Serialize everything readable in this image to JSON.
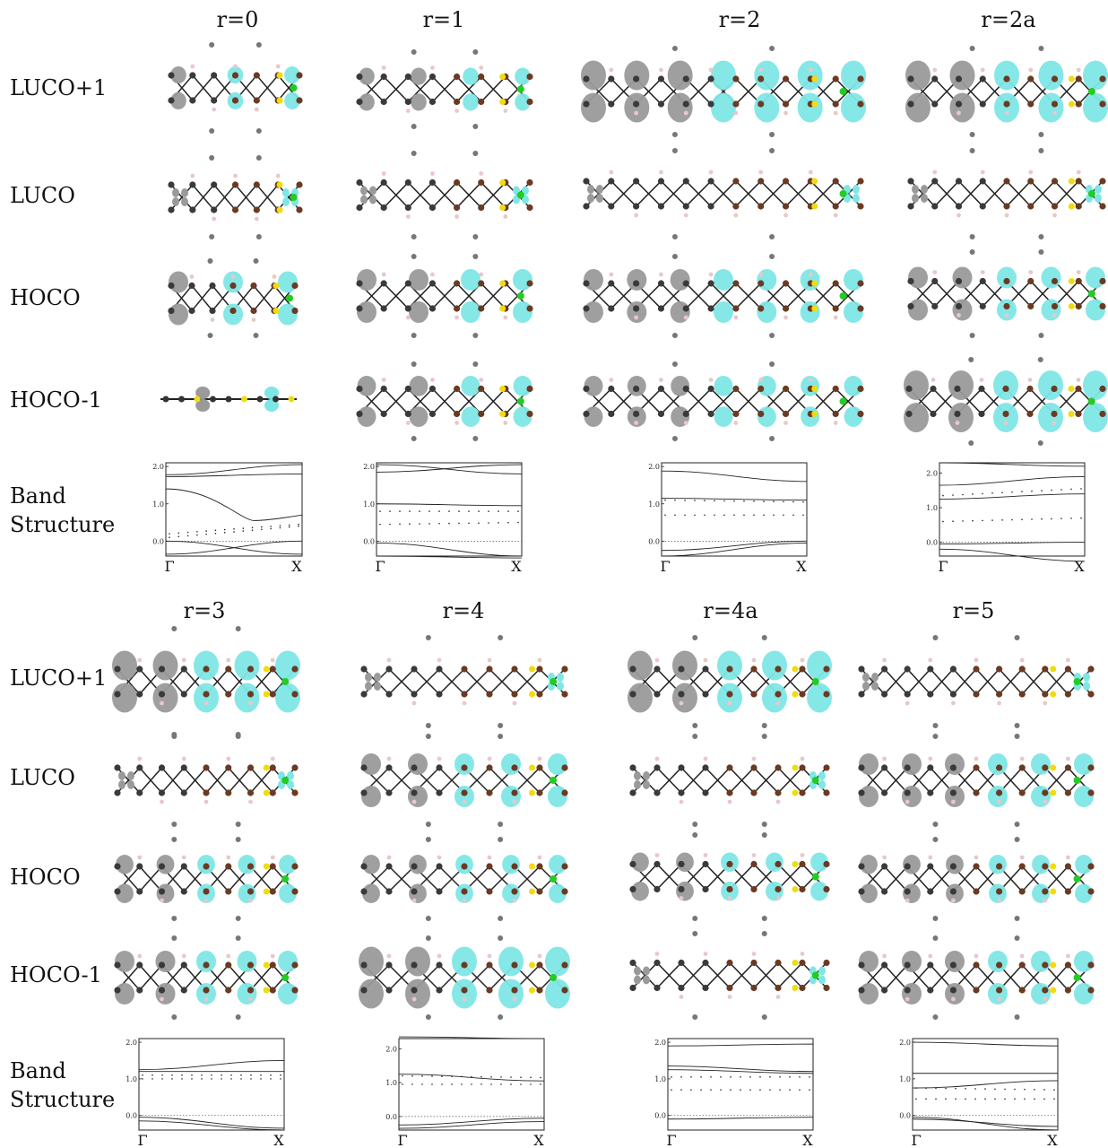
{
  "row_labels": {
    "top": [
      "LUCO+1",
      "LUCO",
      "HOCO",
      "HOCO-1",
      "Band\nStructure"
    ],
    "bottom": [
      "LUCO+1",
      "LUCO",
      "HOCO",
      "HOCO-1",
      "Band\nStructure"
    ]
  },
  "column_headers": {
    "top": [
      "r=0",
      "r=1",
      "r=2",
      "r=2a"
    ],
    "bottom": [
      "r=3",
      "r=4",
      "r=4a",
      "r=5"
    ]
  },
  "colors": {
    "positive_lobe": "#7fe6e6",
    "negative_lobe": "#9a9a9a",
    "carbon_dark": "#3a3a3a",
    "carbon_brown": "#6b3a22",
    "sulfur": "#f0dc10",
    "metal": "#22cc22",
    "hydrogen": "#e8c8c8"
  },
  "band_x_labels": [
    "Γ",
    "X"
  ],
  "chart_data": [
    {
      "type": "line",
      "panel": "r=0",
      "ticks": [
        "2.0",
        "1.0",
        "0.0"
      ],
      "yrange": [
        -0.4,
        2.1
      ],
      "xlabels": [
        "Γ",
        "X"
      ]
    },
    {
      "type": "line",
      "panel": "r=1",
      "ticks": [
        "2.0",
        "1.0",
        "0.0"
      ],
      "yrange": [
        -0.4,
        2.1
      ],
      "xlabels": [
        "Γ",
        "X"
      ]
    },
    {
      "type": "line",
      "panel": "r=2",
      "ticks": [
        "2.0",
        "1.0",
        "0.0"
      ],
      "yrange": [
        -0.4,
        2.1
      ],
      "xlabels": [
        "Γ",
        "X"
      ]
    },
    {
      "type": "line",
      "panel": "r=2a",
      "ticks": [
        "2.0",
        "1.0",
        "0.0"
      ],
      "yrange": [
        -0.4,
        2.3
      ],
      "xlabels": [
        "Γ",
        "X"
      ]
    },
    {
      "type": "line",
      "panel": "r=3",
      "ticks": [
        "2.0",
        "1.0",
        "0.0"
      ],
      "yrange": [
        -0.4,
        2.1
      ],
      "xlabels": [
        "Γ",
        "X"
      ]
    },
    {
      "type": "line",
      "panel": "r=4",
      "ticks": [
        "2.0",
        "1.0",
        "0.0"
      ],
      "yrange": [
        -0.4,
        2.3
      ],
      "xlabels": [
        "Γ",
        "X"
      ]
    },
    {
      "type": "line",
      "panel": "r=4a",
      "ticks": [
        "2.0",
        "1.0",
        "0.0"
      ],
      "yrange": [
        -0.4,
        2.1
      ],
      "xlabels": [
        "Γ",
        "X"
      ]
    },
    {
      "type": "line",
      "panel": "r=5",
      "ticks": [
        "2.0",
        "1.0",
        "0.0"
      ],
      "yrange": [
        -0.4,
        2.1
      ],
      "xlabels": [
        "Γ",
        "X"
      ]
    }
  ]
}
